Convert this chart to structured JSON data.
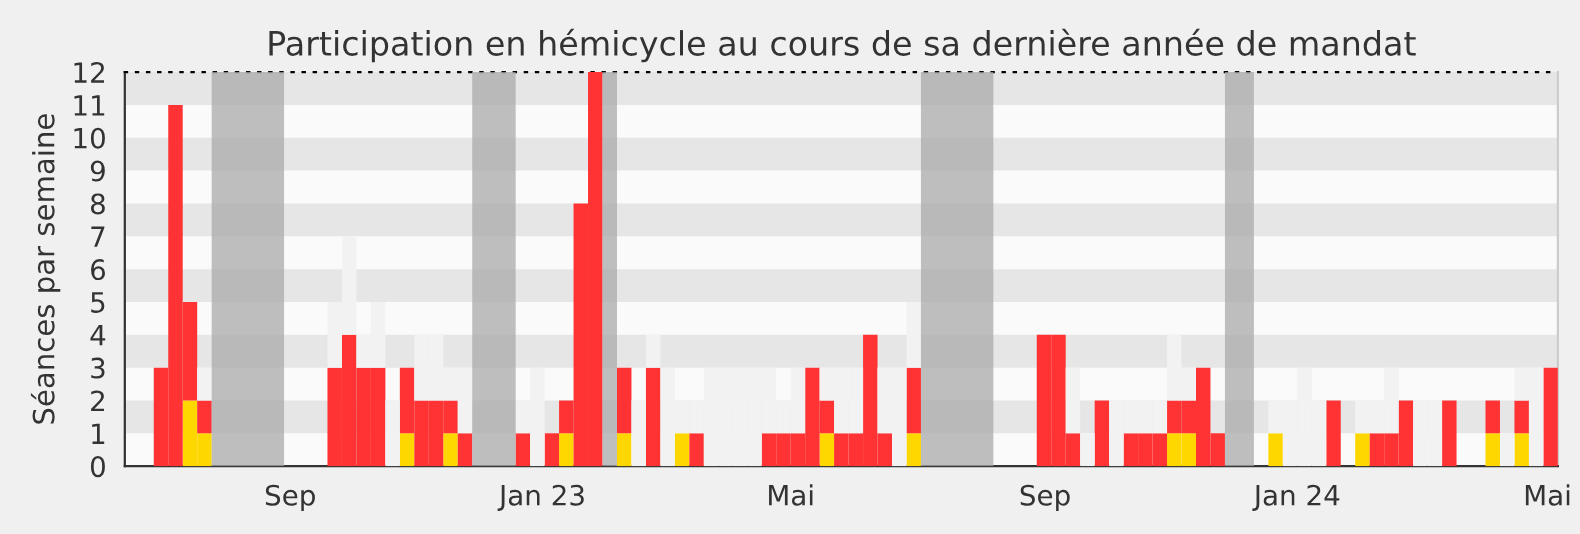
{
  "chart_data": {
    "type": "bar",
    "stacked": true,
    "title": "Participation en hémicycle au cours de sa dernière année de mandat",
    "ylabel": "Séances par semaine",
    "x": [
      "2022-06-13",
      "2022-06-20",
      "2022-06-27",
      "2022-07-04",
      "2022-07-11",
      "2022-07-18",
      "2022-07-25",
      "2022-08-01",
      "2022-08-08",
      "2022-08-15",
      "2022-08-22",
      "2022-08-29",
      "2022-09-05",
      "2022-09-12",
      "2022-09-19",
      "2022-09-26",
      "2022-10-03",
      "2022-10-10",
      "2022-10-17",
      "2022-10-24",
      "2022-10-31",
      "2022-11-07",
      "2022-11-14",
      "2022-11-21",
      "2022-11-28",
      "2022-12-05",
      "2022-12-12",
      "2022-12-19",
      "2022-12-26",
      "2023-01-02",
      "2023-01-09",
      "2023-01-16",
      "2023-01-23",
      "2023-01-30",
      "2023-02-06",
      "2023-02-13",
      "2023-02-20",
      "2023-02-27",
      "2023-03-06",
      "2023-03-13",
      "2023-03-20",
      "2023-03-27",
      "2023-04-03",
      "2023-04-10",
      "2023-04-17",
      "2023-04-24",
      "2023-05-01",
      "2023-05-08",
      "2023-05-15",
      "2023-05-22",
      "2023-05-29",
      "2023-06-05",
      "2023-06-12",
      "2023-06-19",
      "2023-06-26",
      "2023-07-03",
      "2023-07-10",
      "2023-07-17",
      "2023-07-24",
      "2023-07-31",
      "2023-08-07",
      "2023-08-14",
      "2023-08-21",
      "2023-08-28",
      "2023-09-04",
      "2023-09-11",
      "2023-09-18",
      "2023-09-25",
      "2023-10-02",
      "2023-10-09",
      "2023-10-16",
      "2023-10-23",
      "2023-10-30",
      "2023-11-06",
      "2023-11-13",
      "2023-11-20",
      "2023-11-27",
      "2023-12-04",
      "2023-12-11",
      "2023-12-18",
      "2023-12-25",
      "2024-01-01",
      "2024-01-08",
      "2024-01-15",
      "2024-01-22",
      "2024-01-29",
      "2024-02-05",
      "2024-02-12",
      "2024-02-19",
      "2024-02-26",
      "2024-03-04",
      "2024-03-11",
      "2024-03-18",
      "2024-03-25",
      "2024-04-01",
      "2024-04-08",
      "2024-04-15",
      "2024-04-22",
      "2024-04-29"
    ],
    "series": [
      {
        "color": "#ffd700",
        "values": [
          0,
          0,
          0,
          0,
          2,
          1,
          0,
          0,
          0,
          0,
          0,
          0,
          0,
          0,
          0,
          0,
          0,
          0,
          0,
          1,
          0,
          0,
          1,
          0,
          0,
          0,
          0,
          0,
          0,
          0,
          1,
          0,
          0,
          0,
          1,
          0,
          0,
          0,
          1,
          0,
          0,
          0,
          0,
          0,
          0,
          0,
          0,
          0,
          1,
          0,
          0,
          0,
          0,
          0,
          1,
          0,
          0,
          0,
          0,
          0,
          0,
          0,
          0,
          0,
          0,
          0,
          0,
          0,
          0,
          0,
          0,
          0,
          1,
          1,
          0,
          0,
          0,
          0,
          0,
          1,
          0,
          0,
          0,
          0,
          0,
          1,
          0,
          0,
          0,
          0,
          0,
          0,
          0,
          0,
          1,
          0,
          1,
          0,
          0
        ]
      },
      {
        "color": "#ff3333",
        "values": [
          0,
          0,
          3,
          11,
          3,
          1,
          0,
          0,
          0,
          0,
          0,
          0,
          0,
          0,
          3,
          4,
          3,
          3,
          0,
          2,
          2,
          2,
          1,
          1,
          0,
          0,
          0,
          1,
          0,
          1,
          1,
          8,
          12,
          0,
          2,
          0,
          3,
          0,
          0,
          1,
          0,
          0,
          0,
          0,
          1,
          1,
          1,
          3,
          1,
          1,
          1,
          4,
          1,
          0,
          2,
          0,
          0,
          0,
          0,
          0,
          0,
          0,
          0,
          4,
          4,
          1,
          0,
          2,
          0,
          1,
          1,
          1,
          1,
          1,
          3,
          1,
          0,
          0,
          0,
          0,
          0,
          0,
          0,
          2,
          0,
          0,
          1,
          1,
          2,
          0,
          0,
          2,
          0,
          0,
          1,
          0,
          1,
          0,
          3
        ]
      },
      {
        "color": "#f2f2f2",
        "values": [
          0,
          0,
          0,
          0,
          0,
          1,
          0,
          0,
          0,
          0,
          0,
          0,
          0,
          0,
          2,
          3,
          1,
          2,
          2,
          0,
          2,
          2,
          1,
          2,
          0,
          0,
          0,
          1,
          3,
          0,
          0,
          0,
          0,
          0,
          0,
          2,
          1,
          3,
          1,
          1,
          3,
          3,
          3,
          3,
          2,
          1,
          2,
          0,
          1,
          2,
          2,
          0,
          2,
          3,
          2,
          0,
          0,
          0,
          0,
          0,
          0,
          0,
          0,
          0,
          0,
          2,
          1,
          0,
          2,
          1,
          1,
          1,
          2,
          1,
          0,
          0,
          0,
          0,
          0,
          1,
          2,
          3,
          2,
          0,
          0,
          1,
          1,
          2,
          0,
          2,
          2,
          0,
          0,
          0,
          0,
          1,
          1,
          3,
          0
        ]
      }
    ],
    "bands": [
      {
        "axis": "x",
        "from": "2022-07-25",
        "to": "2022-08-29",
        "color": "#aaaaaa"
      },
      {
        "axis": "x",
        "from": "2022-11-28",
        "to": "2022-12-19",
        "color": "#aaaaaa"
      },
      {
        "axis": "x",
        "from": "2023-01-30",
        "to": "2023-02-06",
        "color": "#aaaaaa"
      },
      {
        "axis": "x",
        "from": "2023-07-03",
        "to": "2023-08-07",
        "color": "#aaaaaa"
      },
      {
        "axis": "x",
        "from": "2023-11-27",
        "to": "2023-12-11",
        "color": "#aaaaaa"
      }
    ],
    "xlim": [
      "2022-06-13",
      "2024-05-06"
    ],
    "xticks": [
      {
        "value": "2022-09-01",
        "label": "Sep"
      },
      {
        "value": "2023-01-01",
        "label": "Jan 23"
      },
      {
        "value": "2023-05-01",
        "label": "Mai"
      },
      {
        "value": "2023-09-01",
        "label": "Sep"
      },
      {
        "value": "2024-01-01",
        "label": "Jan 24"
      },
      {
        "value": "2024-05-01",
        "label": "Mai"
      }
    ],
    "ylim": [
      0,
      12
    ],
    "yticks": [
      0,
      1,
      2,
      3,
      4,
      5,
      6,
      7,
      8,
      9,
      10,
      11,
      12
    ]
  }
}
